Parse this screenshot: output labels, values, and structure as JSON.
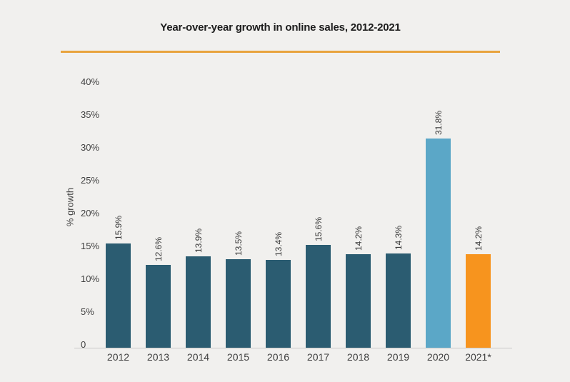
{
  "page": {
    "background_color": "#f1f0ee",
    "divider_color": "#e8a33d"
  },
  "chart_data": {
    "type": "bar",
    "title": "Year-over-year growth in online sales, 2012-2021",
    "xlabel": "",
    "ylabel": "% growth",
    "categories": [
      "2012",
      "2013",
      "2014",
      "2015",
      "2016",
      "2017",
      "2018",
      "2019",
      "2020",
      "2021*"
    ],
    "values": [
      15.9,
      12.6,
      13.9,
      13.5,
      13.4,
      15.6,
      14.2,
      14.3,
      31.8,
      14.2
    ],
    "bar_labels": [
      "15.9%",
      "12.6%",
      "13.9%",
      "13.5%",
      "13.4%",
      "15.6%",
      "14.2%",
      "14.3%",
      "31.8%",
      "14.2%"
    ],
    "bar_colors": [
      "#2b5c71",
      "#2b5c71",
      "#2b5c71",
      "#2b5c71",
      "#2b5c71",
      "#2b5c71",
      "#2b5c71",
      "#2b5c71",
      "#5ba7c7",
      "#f7941e"
    ],
    "y_ticks": [
      {
        "label": "40%",
        "value": 40
      },
      {
        "label": "35%",
        "value": 35
      },
      {
        "label": "30%",
        "value": 30
      },
      {
        "label": "25%",
        "value": 25
      },
      {
        "label": "20%",
        "value": 20
      },
      {
        "label": "15%",
        "value": 15
      },
      {
        "label": "10%",
        "value": 10
      },
      {
        "label": "5%",
        "value": 5
      },
      {
        "label": "0",
        "value": 0
      }
    ],
    "ylim": [
      0,
      40
    ],
    "grid": false,
    "legend": null,
    "axis_color": "#c8c8c8",
    "value_label_rotation_deg": -90
  }
}
